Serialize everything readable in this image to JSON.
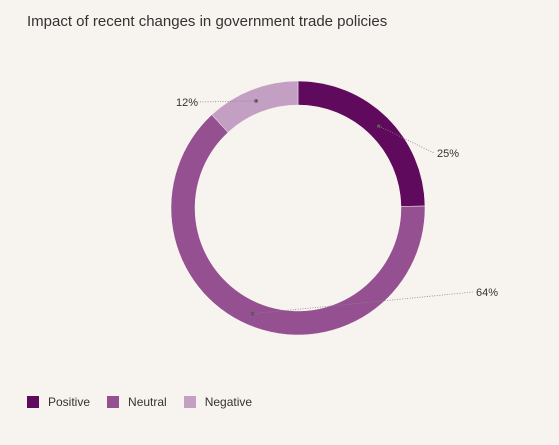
{
  "chart_data": {
    "type": "pie",
    "title": "Impact of recent changes in government trade policies",
    "categories": [
      "Positive",
      "Neutral",
      "Negative"
    ],
    "values": [
      25,
      64,
      12
    ],
    "value_labels": [
      "25%",
      "64%",
      "12%"
    ],
    "colors": [
      "#5f0a5c",
      "#955092",
      "#c39fc3"
    ],
    "donut": true,
    "legend_position": "bottom-left"
  }
}
